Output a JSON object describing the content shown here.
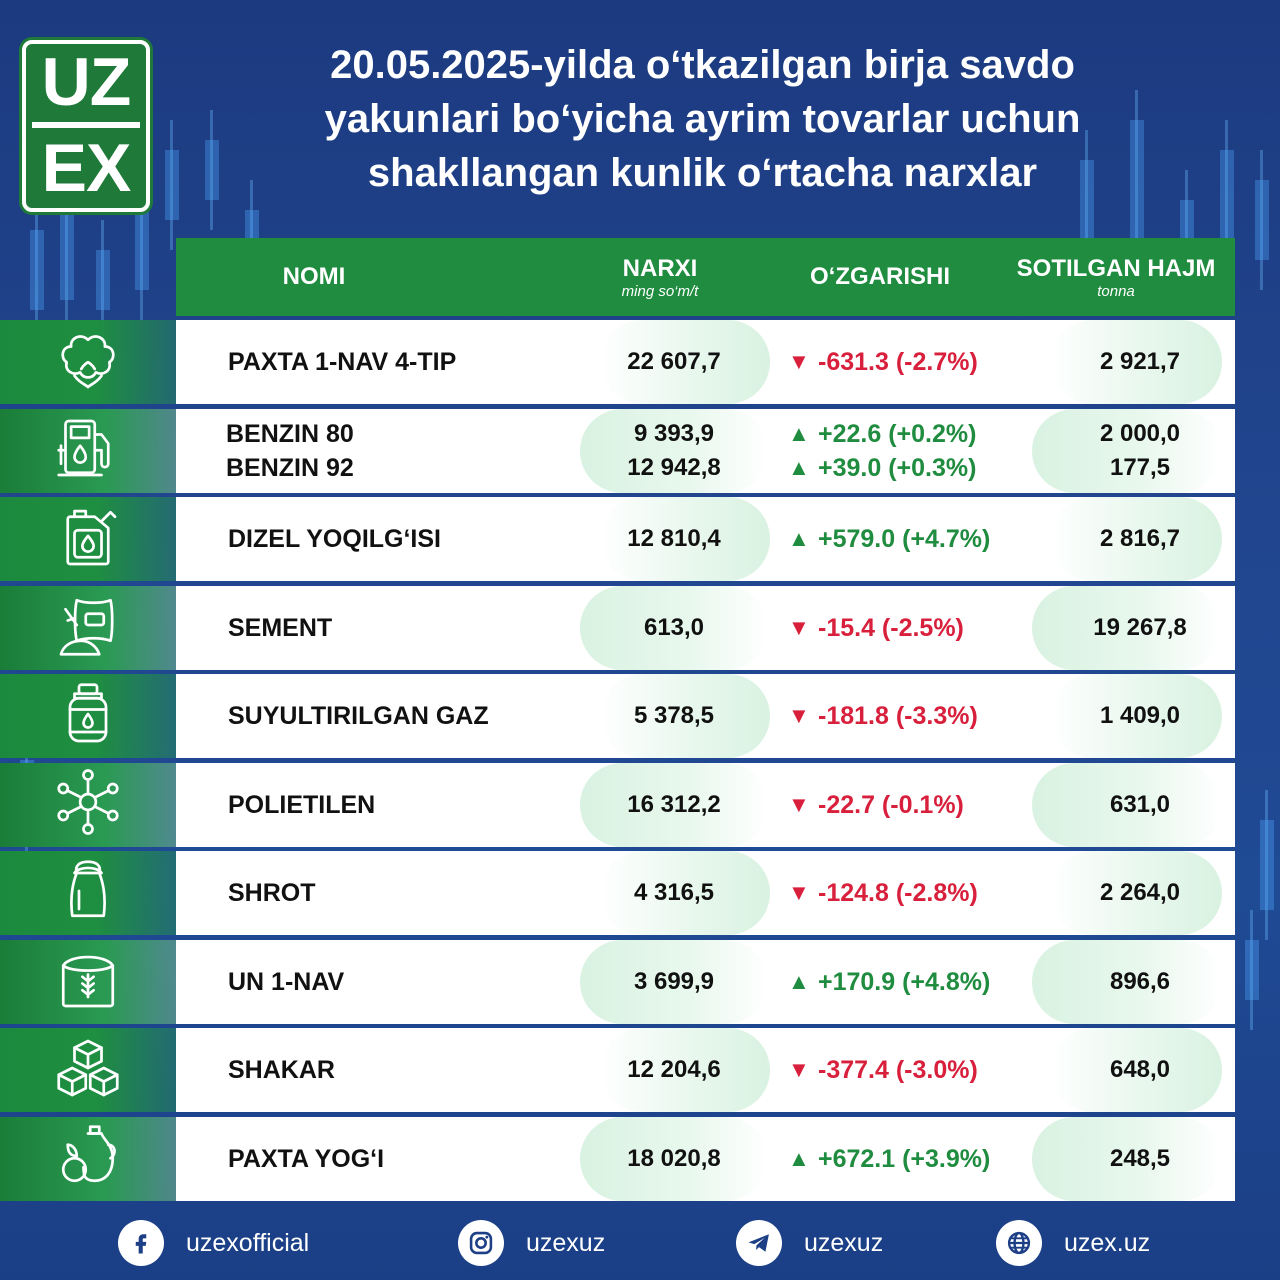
{
  "logo": {
    "line1": "UZ",
    "line2": "EX"
  },
  "title": {
    "line1": "20.05.2025-yilda o‘tkazilgan birja savdo",
    "line2": "yakunlari bo‘yicha ayrim tovarlar uchun",
    "line3": "shakllangan kunlik o‘rtacha narxlar"
  },
  "header": {
    "name": "NOMI",
    "price": "NARXI",
    "price_unit": "ming so‘m/t",
    "change": "O‘ZGARISHI",
    "volume": "SOTILGAN HAJM",
    "volume_unit": "tonna"
  },
  "rows": [
    {
      "icon": "cotton-icon",
      "names": [
        "PAXTA  1-NAV  4-TIP"
      ],
      "prices": [
        "22 607,7"
      ],
      "changes": [
        {
          "dir": "down",
          "text": "-631.3 (-2.7%)"
        }
      ],
      "volumes": [
        "2 921,7"
      ]
    },
    {
      "icon": "fuel-pump-icon",
      "names": [
        "BENZIN 80",
        "BENZIN 92"
      ],
      "prices": [
        "9 393,9",
        "12 942,8"
      ],
      "changes": [
        {
          "dir": "up",
          "text": "+22.6 (+0.2%)"
        },
        {
          "dir": "up",
          "text": "+39.0 (+0.3%)"
        }
      ],
      "volumes": [
        "2 000,0",
        "177,5"
      ]
    },
    {
      "icon": "jerrycan-icon",
      "names": [
        "DIZEL YOQILG‘ISI"
      ],
      "prices": [
        "12 810,4"
      ],
      "changes": [
        {
          "dir": "up",
          "text": "+579.0 (+4.7%)"
        }
      ],
      "volumes": [
        "2 816,7"
      ]
    },
    {
      "icon": "cement-bag-icon",
      "names": [
        "SEMENT"
      ],
      "prices": [
        "613,0"
      ],
      "changes": [
        {
          "dir": "down",
          "text": "-15.4 (-2.5%)"
        }
      ],
      "volumes": [
        "19 267,8"
      ]
    },
    {
      "icon": "gas-cylinder-icon",
      "names": [
        "SUYULTIRILGAN GAZ"
      ],
      "prices": [
        "5 378,5"
      ],
      "changes": [
        {
          "dir": "down",
          "text": "-181.8 (-3.3%)"
        }
      ],
      "volumes": [
        "1 409,0"
      ]
    },
    {
      "icon": "molecule-icon",
      "names": [
        "POLIETILEN"
      ],
      "prices": [
        "16 312,2"
      ],
      "changes": [
        {
          "dir": "down",
          "text": "-22.7 (-0.1%)"
        }
      ],
      "volumes": [
        "631,0"
      ]
    },
    {
      "icon": "sack-icon",
      "names": [
        "SHROT"
      ],
      "prices": [
        "4 316,5"
      ],
      "changes": [
        {
          "dir": "down",
          "text": "-124.8 (-2.8%)"
        }
      ],
      "volumes": [
        "2 264,0"
      ]
    },
    {
      "icon": "flour-bag-icon",
      "names": [
        "UN 1-NAV"
      ],
      "prices": [
        "3 699,9"
      ],
      "changes": [
        {
          "dir": "up",
          "text": "+170.9 (+4.8%)"
        }
      ],
      "volumes": [
        "896,6"
      ]
    },
    {
      "icon": "sugar-cubes-icon",
      "names": [
        "SHAKAR"
      ],
      "prices": [
        "12 204,6"
      ],
      "changes": [
        {
          "dir": "down",
          "text": "-377.4 (-3.0%)"
        }
      ],
      "volumes": [
        "648,0"
      ]
    },
    {
      "icon": "oil-jug-icon",
      "names": [
        "PAXTA  YOG‘I"
      ],
      "prices": [
        "18 020,8"
      ],
      "changes": [
        {
          "dir": "up",
          "text": "+672.1 (+3.9%)"
        }
      ],
      "volumes": [
        "248,5"
      ]
    }
  ],
  "arrows": {
    "up": "▲",
    "down": "▼"
  },
  "footer": {
    "facebook": "uzexofficial",
    "instagram": "uzexuz",
    "telegram": "uzexuz",
    "website": "uzex.uz"
  },
  "colors": {
    "green": "#1f8c3f",
    "red": "#d8203c",
    "navy": "#1d3f86"
  }
}
